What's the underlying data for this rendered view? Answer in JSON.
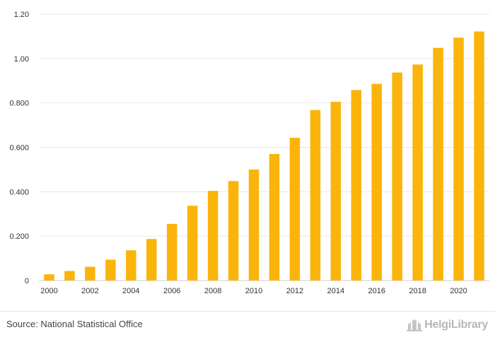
{
  "chart_data": {
    "type": "bar",
    "title": "",
    "xlabel": "",
    "ylabel": "",
    "categories": [
      "2000",
      "2001",
      "2002",
      "2003",
      "2004",
      "2005",
      "2006",
      "2007",
      "2008",
      "2009",
      "2010",
      "2011",
      "2012",
      "2013",
      "2014",
      "2015",
      "2016",
      "2017",
      "2018",
      "2019",
      "2020",
      "2021"
    ],
    "x_tick_labels": [
      "2000",
      "2002",
      "2004",
      "2006",
      "2008",
      "2010",
      "2012",
      "2014",
      "2016",
      "2018",
      "2020"
    ],
    "values": [
      0.028,
      0.043,
      0.062,
      0.094,
      0.136,
      0.187,
      0.255,
      0.337,
      0.404,
      0.448,
      0.5,
      0.57,
      0.643,
      0.768,
      0.805,
      0.858,
      0.886,
      0.937,
      0.973,
      1.048,
      1.094,
      1.122
    ],
    "ylim": [
      0,
      1.2
    ],
    "y_ticks": [
      0,
      0.2,
      0.4,
      0.6,
      0.8,
      1.0,
      1.2
    ],
    "y_tick_labels": [
      "0",
      "0.200",
      "0.400",
      "0.600",
      "0.800",
      "1.00",
      "1.20"
    ],
    "grid": true,
    "bar_color": "#fbb40b"
  },
  "footer": {
    "source": "Source: National Statistical Office",
    "logo_text": "HelgiLibrary"
  }
}
